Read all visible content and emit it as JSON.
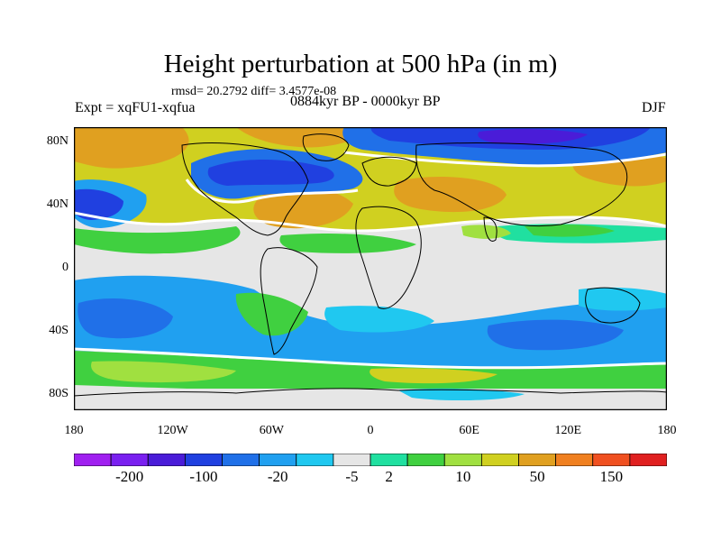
{
  "figure": {
    "title": "Height perturbation at 500 hPa (in m)",
    "stats": "rmsd= 20.2792 diff= 3.4577e-08",
    "expt": "Expt = xqFU1-xqfua",
    "period": "0884kyr BP - 0000kyr BP",
    "season": "DJF"
  },
  "axes": {
    "y_ticks": [
      "80N",
      "40N",
      "0",
      "40S",
      "80S"
    ],
    "y_values": [
      80,
      40,
      0,
      -40,
      -80
    ],
    "x_ticks": [
      "180",
      "120W",
      "60W",
      "0",
      "60E",
      "120E",
      "180"
    ],
    "x_values": [
      -180,
      -120,
      -60,
      0,
      60,
      120,
      180
    ],
    "lat_range": [
      -90,
      90
    ],
    "lon_range": [
      -180,
      180
    ]
  },
  "colorbar": {
    "colors": [
      "#a020f0",
      "#7a20f0",
      "#4a1cd8",
      "#2040e0",
      "#2070e8",
      "#20a0f0",
      "#20c8f0",
      "#e6e6e6",
      "#20e0a0",
      "#40d040",
      "#a0e040",
      "#d0d020",
      "#e0a020",
      "#f08020",
      "#f05020",
      "#e02020"
    ],
    "labels": [
      "-200",
      "-100",
      "-20",
      "-5",
      "2",
      "10",
      "50",
      "150"
    ],
    "label_boundaries": [
      1,
      3,
      5,
      7,
      8,
      10,
      12,
      14
    ]
  },
  "map_colors": {
    "neutral": "#e6e6e6",
    "green": "#40d040",
    "lime": "#a0e040",
    "teal": "#20e0a0",
    "cyan": "#20c8f0",
    "lightblue": "#20a0f0",
    "blue": "#2070e8",
    "darkblue": "#2040e0",
    "indigo": "#4a1cd8",
    "yellow": "#d0d020",
    "orange": "#e0a020",
    "darkorange": "#f08020",
    "white_contour": "#ffffff",
    "coast": "#000000"
  }
}
